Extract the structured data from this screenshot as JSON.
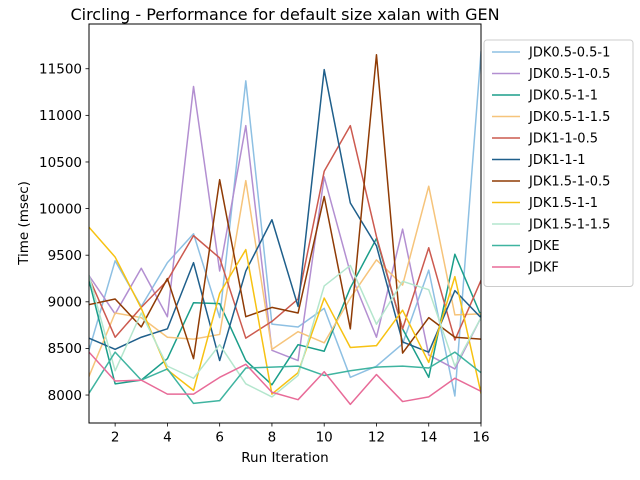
{
  "chart_data": {
    "type": "line",
    "title": "Circling - Performance for default size xalan with GEN",
    "xlabel": "Run Iteration",
    "ylabel": "Time (msec)",
    "x": [
      1,
      2,
      3,
      4,
      5,
      6,
      7,
      8,
      9,
      10,
      11,
      12,
      13,
      14,
      15,
      16
    ],
    "xlim": [
      1,
      16
    ],
    "ylim": [
      7700,
      11980
    ],
    "xticks": [
      2,
      4,
      6,
      8,
      10,
      12,
      14,
      16
    ],
    "yticks": [
      8000,
      8500,
      9000,
      9500,
      10000,
      10500,
      11000,
      11500
    ],
    "grid": false,
    "legend": "outside-right-top",
    "series": [
      {
        "name": "JDK0.5-0.5-1",
        "color": "#8ec0e3",
        "values": [
          8480,
          9440,
          8950,
          9420,
          9730,
          8830,
          11370,
          8760,
          8730,
          8930,
          8190,
          8310,
          8550,
          9340,
          7990,
          11680
        ]
      },
      {
        "name": "JDK0.5-1-0.5",
        "color": "#b38fd1",
        "values": [
          9280,
          8870,
          9360,
          8840,
          11310,
          9330,
          10890,
          8480,
          8370,
          10340,
          9310,
          8620,
          9780,
          8430,
          8280,
          8830
        ]
      },
      {
        "name": "JDK0.5-1-1",
        "color": "#1b9e8a",
        "values": [
          9230,
          8120,
          8160,
          8390,
          8990,
          8980,
          8370,
          8110,
          8540,
          8470,
          9150,
          9680,
          8710,
          8190,
          9510,
          8850
        ]
      },
      {
        "name": "JDK0.5-1-1.5",
        "color": "#f6c47b",
        "values": [
          8200,
          8880,
          8830,
          8620,
          8600,
          8650,
          10300,
          8490,
          8680,
          8560,
          9040,
          9450,
          9180,
          10240,
          8860,
          8870
        ]
      },
      {
        "name": "JDK1-1-0.5",
        "color": "#cc5a4f",
        "values": [
          9260,
          8620,
          8940,
          9230,
          9710,
          9470,
          8610,
          8790,
          9030,
          10400,
          10890,
          9700,
          8710,
          9580,
          8590,
          9230
        ]
      },
      {
        "name": "JDK1-1-1",
        "color": "#1f5f8b",
        "values": [
          8610,
          8490,
          8620,
          8710,
          9420,
          8370,
          9330,
          9880,
          8950,
          11490,
          10060,
          9600,
          8570,
          8460,
          9120,
          8830
        ]
      },
      {
        "name": "JDK1.5-1-0.5",
        "color": "#8f3b05",
        "values": [
          8970,
          9030,
          8730,
          9250,
          8390,
          10310,
          8840,
          8940,
          8880,
          10130,
          8710,
          11650,
          8450,
          8830,
          8620,
          8600
        ]
      },
      {
        "name": "JDK1.5-1-1",
        "color": "#f7c212",
        "values": [
          9800,
          9480,
          8930,
          8270,
          8050,
          9090,
          9560,
          8010,
          8240,
          9040,
          8510,
          8530,
          8910,
          8350,
          9270,
          8020
        ]
      },
      {
        "name": "JDK1.5-1-1.5",
        "color": "#b4e6cd",
        "values": [
          9280,
          8260,
          8880,
          8310,
          8180,
          8540,
          8120,
          7980,
          8210,
          9170,
          9390,
          8760,
          9220,
          9130,
          8310,
          8830
        ]
      },
      {
        "name": "JDKE",
        "color": "#3fb4a0",
        "values": [
          8020,
          8460,
          8160,
          8280,
          7910,
          7940,
          8290,
          8300,
          8310,
          8210,
          8260,
          8300,
          8310,
          8290,
          8460,
          8240
        ]
      },
      {
        "name": "JDKF",
        "color": "#e86b98",
        "values": [
          8460,
          8150,
          8160,
          8010,
          8010,
          8190,
          8330,
          8030,
          7950,
          8250,
          7900,
          8220,
          7930,
          7980,
          8180,
          8040
        ]
      }
    ]
  }
}
